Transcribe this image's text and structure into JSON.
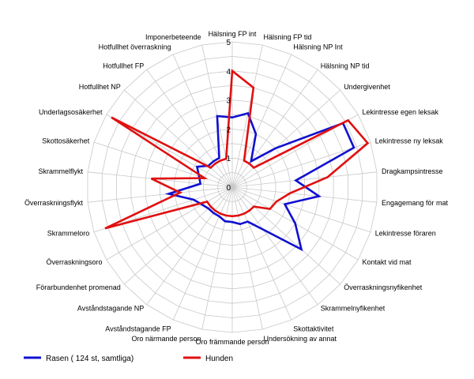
{
  "chart_data": {
    "type": "radar",
    "categories": [
      "Hälsning FP int",
      "Hälsning FP tid",
      "Hälsning NP Int",
      "Hälsning NP tid",
      "Undergivenhet",
      "Lekintresse egen leksak",
      "Lekintresse ny leksak",
      "Dragkampsintresse",
      "Engagemang för mat",
      "Lekintresse föraren",
      "Kontakt vid mat",
      "Överraskningsnyfikenhet",
      "Skrammelnyfikenhet",
      "Skottaktivitet",
      "Undersökning av annat",
      "Oro främmande person",
      "Oro närmande person",
      "Avståndstagande FP",
      "Avståndstagande NP",
      "Förarbundenhet promenad",
      "Överraskningsoro",
      "Skrammeloro",
      "Överraskningsflykt",
      "Skrammelflykt",
      "Skottosäkerhet",
      "Underlagsosäkerhet",
      "Hotfullhet NP",
      "Hotfullhet FP",
      "Hotfullhet överraskning",
      "Imponerbeteende"
    ],
    "series": [
      {
        "name": "Rasen ( 124 st, samtliga)",
        "color": "#1010d0",
        "values": [
          2.4,
          2.6,
          2.0,
          1.1,
          2.0,
          4.4,
          4.4,
          2.2,
          3.0,
          1.9,
          2.5,
          3.2,
          1.8,
          1.3,
          1.3,
          1.2,
          1.2,
          1.1,
          1.1,
          1.1,
          1.2,
          1.4,
          2.2,
          1.1,
          1.2,
          1.4,
          1.1,
          1.1,
          1.1,
          2.5
        ]
      },
      {
        "name": "Hunden",
        "color": "#e01010",
        "values": [
          4.0,
          3.5,
          1.0,
          1.0,
          1.0,
          4.6,
          4.9,
          3.3,
          2.0,
          1.6,
          1.5,
          1.0,
          1.0,
          1.0,
          1.0,
          1.0,
          1.0,
          1.0,
          1.0,
          1.0,
          1.0,
          4.6,
          1.8,
          2.8,
          1.0,
          4.8,
          1.0,
          1.0,
          1.0,
          1.0
        ]
      }
    ],
    "rmin": 0,
    "rmax": 5,
    "ticks": [
      "0",
      "1",
      "2",
      "3",
      "4",
      "5"
    ],
    "grid": true,
    "legend_position": "bottom-left"
  }
}
